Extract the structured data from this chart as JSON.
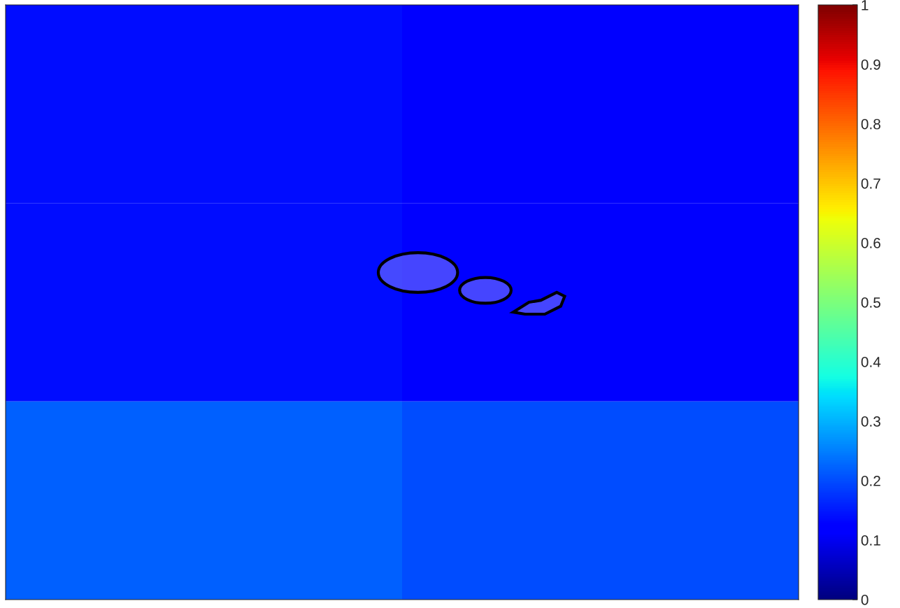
{
  "chart_data": {
    "type": "heatmap",
    "categories": [
      null,
      null
    ],
    "y_categories": [
      null,
      null,
      null
    ],
    "cells": [
      [
        0.14,
        0.11
      ],
      [
        0.14,
        0.11
      ],
      [
        0.22,
        0.2
      ]
    ],
    "clim": [
      0,
      1
    ],
    "cticks": [
      0,
      0.1,
      0.2,
      0.3,
      0.4,
      0.5,
      0.6,
      0.7,
      0.8,
      0.9,
      1
    ]
  }
}
